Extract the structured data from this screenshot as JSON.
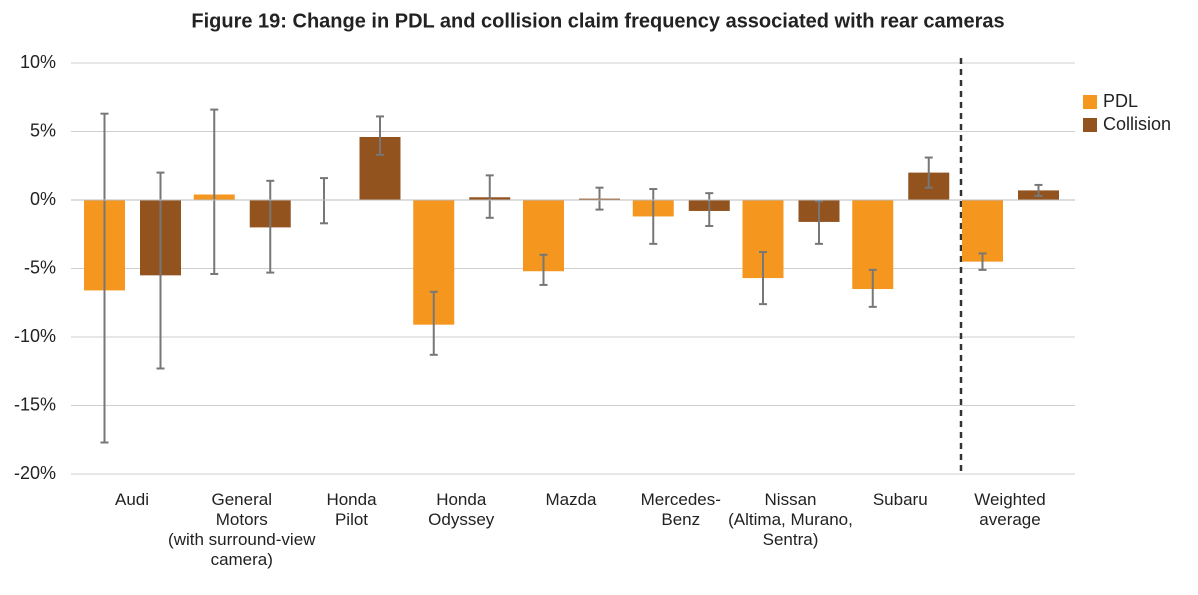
{
  "chart_data": {
    "type": "bar",
    "title": "Figure 19: Change in PDL and collision claim frequency associated with rear cameras",
    "categories": [
      "Audi",
      "General\nMotors\n(with surround-view\ncamera)",
      "Honda\nPilot",
      "Honda\nOdyssey",
      "Mazda",
      "Mercedes-\nBenz",
      "Nissan\n(Altima, Murano,\nSentra)",
      "Subaru",
      "Weighted\naverage"
    ],
    "series": [
      {
        "name": "PDL",
        "color": "#f5971f",
        "values": [
          -6.6,
          0.4,
          0,
          -9.1,
          -5.2,
          -1.2,
          -5.7,
          -6.5,
          -4.5
        ],
        "ci_low": [
          -17.7,
          -5.4,
          -1.7,
          -11.3,
          -6.2,
          -3.2,
          -7.6,
          -7.8,
          -5.1
        ],
        "ci_high": [
          6.3,
          6.6,
          1.6,
          -6.7,
          -4.0,
          0.8,
          -3.8,
          -5.1,
          -3.9
        ]
      },
      {
        "name": "Collision",
        "color": "#93531f",
        "values": [
          -5.5,
          -2.0,
          4.6,
          0.2,
          0.1,
          -0.8,
          -1.6,
          2.0,
          0.7
        ],
        "ci_low": [
          -12.3,
          -5.3,
          3.3,
          -1.3,
          -0.7,
          -1.9,
          -3.2,
          0.9,
          0.3
        ],
        "ci_high": [
          2.0,
          1.4,
          6.1,
          1.8,
          0.9,
          0.5,
          -0.1,
          3.1,
          1.1
        ]
      }
    ],
    "ylim": [
      -20,
      10
    ],
    "yticks": [
      {
        "value": -20,
        "label": "-20%"
      },
      {
        "value": -15,
        "label": "-15%"
      },
      {
        "value": -10,
        "label": "-10%"
      },
      {
        "value": -5,
        "label": "-5%"
      },
      {
        "value": 0,
        "label": "0%"
      },
      {
        "value": 5,
        "label": "5%"
      },
      {
        "value": 10,
        "label": "10%"
      }
    ],
    "grid": true,
    "legend": "right"
  }
}
